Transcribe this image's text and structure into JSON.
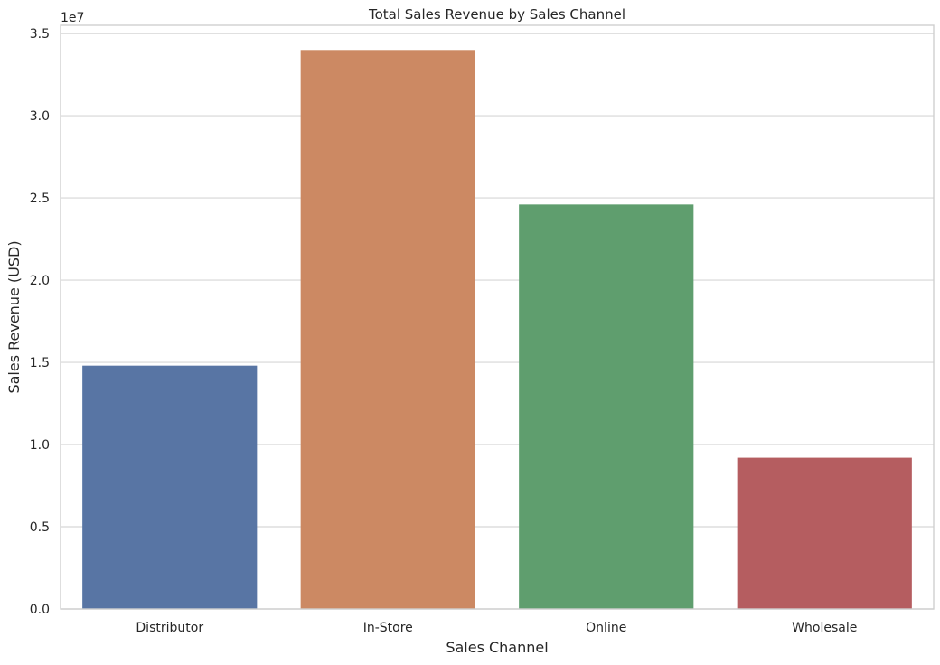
{
  "chart_data": {
    "type": "bar",
    "title": "Total Sales Revenue by Sales Channel",
    "xlabel": "Sales Channel",
    "ylabel": "Sales Revenue (USD)",
    "offset_label": "1e7",
    "categories": [
      "Distributor",
      "In-Store",
      "Online",
      "Wholesale"
    ],
    "values": [
      14800000,
      34000000,
      24600000,
      9200000
    ],
    "colors": [
      "#5875a4",
      "#cc8963",
      "#5f9e6e",
      "#b55d60"
    ],
    "ylim": [
      0,
      35500000
    ],
    "yticks": [
      0,
      5000000,
      10000000,
      15000000,
      20000000,
      25000000,
      30000000,
      35000000
    ],
    "ytick_labels": [
      "0.0",
      "0.5",
      "1.0",
      "1.5",
      "2.0",
      "2.5",
      "3.0",
      "3.5"
    ],
    "grid": true
  }
}
